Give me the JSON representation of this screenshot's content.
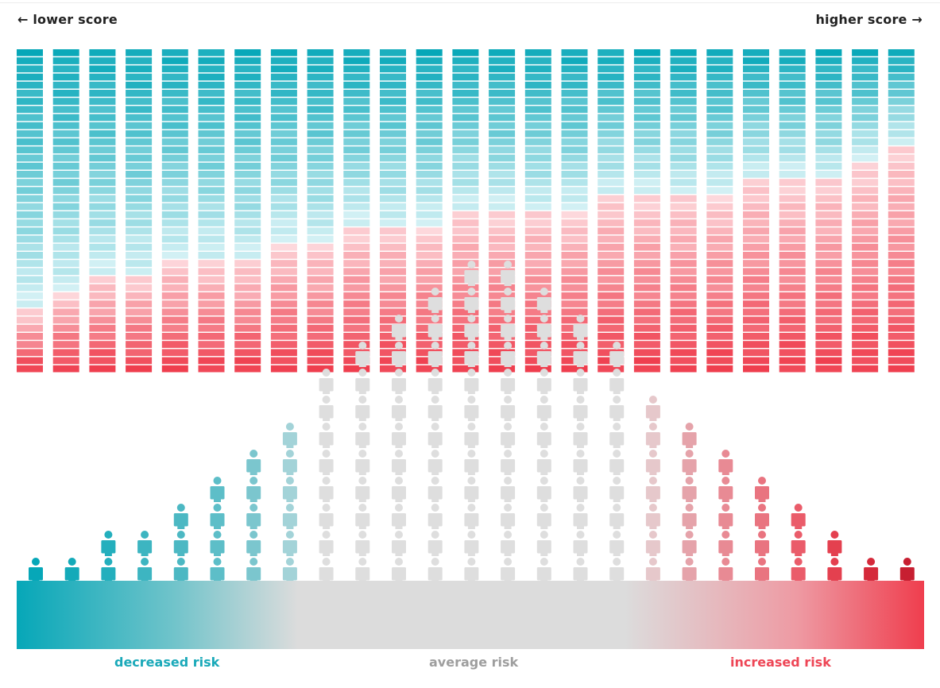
{
  "header": {
    "lower_score": "← lower score",
    "higher_score": "higher score →"
  },
  "risk_labels": {
    "decreased": "decreased risk",
    "average": "average risk",
    "increased": "increased risk"
  },
  "colors": {
    "teal_dark": "#06a7b8",
    "teal_light": "#d2f0f4",
    "pink_light": "#fdd8dc",
    "red_dark": "#ef3e4e",
    "grey": "#dcdcdc",
    "text": "#222222"
  },
  "diagram": {
    "segments_per_bar": 40,
    "red_segments_per_bar": [
      8,
      10,
      12,
      12,
      14,
      14,
      14,
      16,
      16,
      18,
      18,
      18,
      20,
      20,
      20,
      20,
      22,
      22,
      22,
      22,
      24,
      24,
      24,
      26,
      28
    ],
    "people_per_column": [
      1,
      1,
      2,
      2,
      3,
      4,
      5,
      6,
      8,
      9,
      10,
      11,
      12,
      12,
      11,
      10,
      9,
      7,
      6,
      5,
      4,
      3,
      2,
      1,
      1
    ],
    "column_colors": [
      "#06a7b8",
      "#14aab9",
      "#24afbd",
      "#3db5c1",
      "#4cb8c3",
      "#5dbec8",
      "#7bc6ce",
      "#a3d3d8",
      "#dedede",
      "#dedede",
      "#dedede",
      "#dedede",
      "#dedede",
      "#dedede",
      "#dedede",
      "#dedede",
      "#dedede",
      "#e6c8cb",
      "#e5a3aa",
      "#e88a94",
      "#e97480",
      "#ea5c6a",
      "#e4404f",
      "#d52a3b",
      "#c71f31"
    ]
  }
}
